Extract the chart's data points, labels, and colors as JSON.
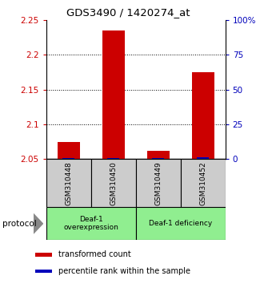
{
  "title": "GDS3490 / 1420274_at",
  "samples": [
    "GSM310448",
    "GSM310450",
    "GSM310449",
    "GSM310452"
  ],
  "red_values": [
    2.075,
    2.235,
    2.062,
    2.175
  ],
  "blue_values": [
    2.052,
    2.052,
    2.052,
    2.053
  ],
  "ylim_left": [
    2.05,
    2.25
  ],
  "ylim_right": [
    0,
    100
  ],
  "yticks_left": [
    2.05,
    2.1,
    2.15,
    2.2,
    2.25
  ],
  "ytick_labels_left": [
    "2.05",
    "2.1",
    "2.15",
    "2.2",
    "2.25"
  ],
  "yticks_right": [
    0,
    25,
    50,
    75,
    100
  ],
  "ytick_labels_right": [
    "0",
    "25",
    "50",
    "75",
    "100%"
  ],
  "group1_label": "Deaf-1\noverexpression",
  "group2_label": "Deaf-1 deficiency",
  "group_color": "#90EE90",
  "protocol_label": "protocol",
  "bar_width": 0.5,
  "red_color": "#CC0000",
  "blue_color": "#0000BB",
  "sample_box_color": "#cccccc",
  "left_tick_color": "#CC0000",
  "right_tick_color": "#0000BB",
  "grid_color": "#000000",
  "legend_red": "transformed count",
  "legend_blue": "percentile rank within the sample",
  "gridline_yticks": [
    2.1,
    2.15,
    2.2
  ]
}
